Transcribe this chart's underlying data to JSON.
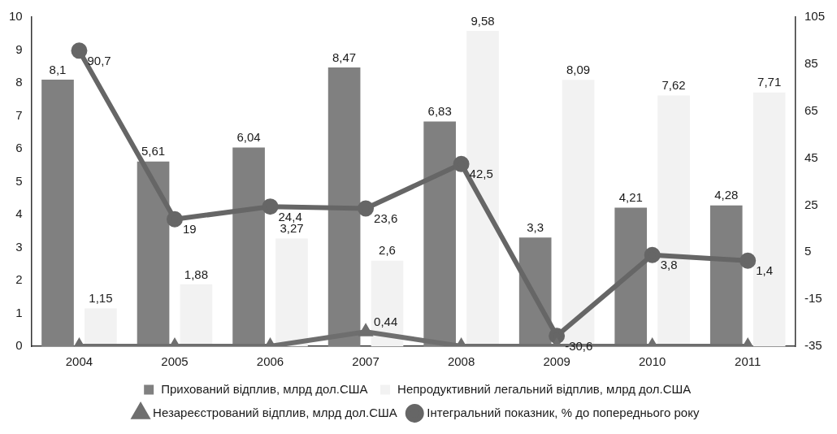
{
  "chart_data": {
    "type": "bar",
    "categories": [
      "2004",
      "2005",
      "2006",
      "2007",
      "2008",
      "2009",
      "2010",
      "2011"
    ],
    "ylim": [
      0,
      10
    ],
    "yticks": [
      0,
      1,
      2,
      3,
      4,
      5,
      6,
      7,
      8,
      9,
      10
    ],
    "y2lim": [
      -35,
      105
    ],
    "y2ticks": [
      -35,
      -15,
      5,
      25,
      45,
      65,
      85,
      105
    ],
    "legend": "bottom",
    "grid": false,
    "series": [
      {
        "name": "Прихований відплив, млрд дол.США",
        "type": "bar",
        "color": "#808080",
        "values": [
          8.1,
          5.61,
          6.04,
          8.47,
          6.83,
          3.3,
          4.21,
          4.28
        ],
        "value_labels": [
          "8,1",
          "5,61",
          "6,04",
          "8,47",
          "6,83",
          "3,3",
          "4,21",
          "4,28"
        ]
      },
      {
        "name": "Непродуктивний легальний відплив, млрд дол.США",
        "type": "bar",
        "color": "#f2f2f2",
        "values": [
          1.15,
          1.88,
          3.27,
          2.6,
          9.58,
          8.09,
          7.62,
          7.71
        ],
        "value_labels": [
          "1,15",
          "1,88",
          "3,27",
          "2,6",
          "9,58",
          "8,09",
          "7,62",
          "7,71"
        ]
      },
      {
        "name": "Незареєстрований відплив, млрд дол.США",
        "type": "line",
        "marker": "triangle",
        "color": "#6e6e6e",
        "values": [
          0,
          0,
          0,
          0.44,
          0,
          0,
          0,
          0
        ],
        "value_labels": [
          null,
          null,
          null,
          "0,44",
          null,
          null,
          null,
          null
        ]
      },
      {
        "name": "Інтегральний показник, % до попереднього року",
        "type": "line",
        "marker": "circle",
        "axis": "y2",
        "color": "#666666",
        "values": [
          90.7,
          19,
          24.4,
          23.6,
          42.5,
          -30.6,
          3.8,
          1.4
        ],
        "value_labels": [
          "90,7",
          "19",
          "24,4",
          "23,6",
          "42,5",
          "-30,6",
          "3,8",
          "1,4"
        ]
      }
    ]
  }
}
